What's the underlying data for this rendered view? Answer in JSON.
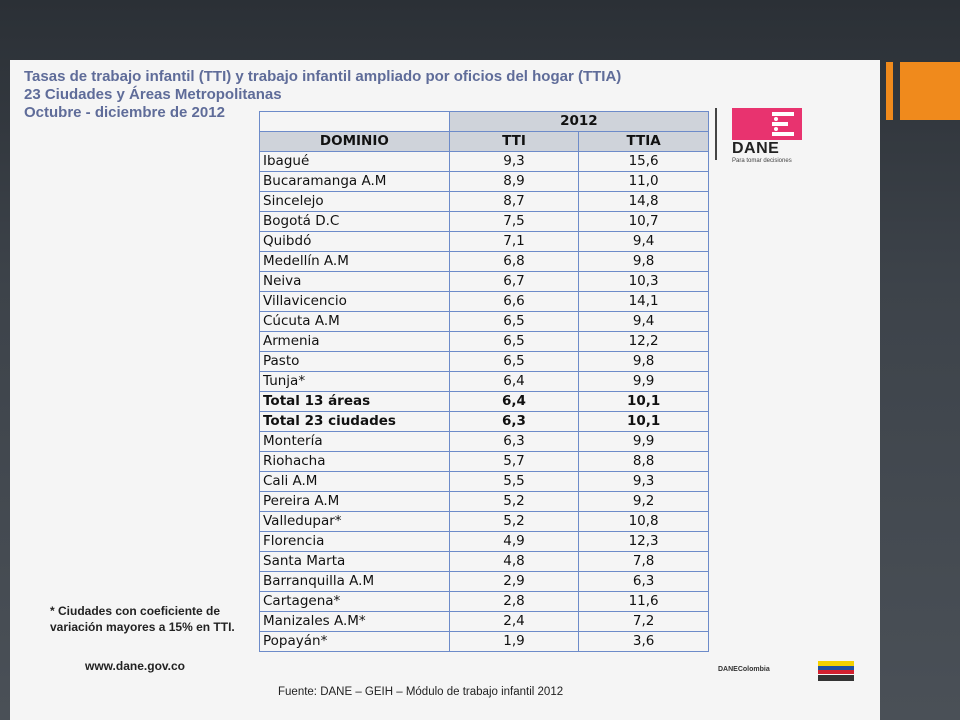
{
  "title_lines": [
    "Tasas de trabajo infantil (TTI) y trabajo infantil ampliado por oficios del hogar (TTIA)",
    "23 Ciudades y Áreas Metropolitanas",
    "Octubre - diciembre de 2012"
  ],
  "table": {
    "year": "2012",
    "col_domain": "DOMINIO",
    "col_tti": "TTI",
    "col_ttia": "TTIA",
    "rows": [
      {
        "domain": "Ibagué",
        "tti": "9,3",
        "ttia": "15,6",
        "bold": false
      },
      {
        "domain": "Bucaramanga A.M",
        "tti": "8,9",
        "ttia": "11,0",
        "bold": false
      },
      {
        "domain": "Sincelejo",
        "tti": "8,7",
        "ttia": "14,8",
        "bold": false
      },
      {
        "domain": "Bogotá D.C",
        "tti": "7,5",
        "ttia": "10,7",
        "bold": false
      },
      {
        "domain": "Quibdó",
        "tti": "7,1",
        "ttia": "9,4",
        "bold": false
      },
      {
        "domain": "Medellín A.M",
        "tti": "6,8",
        "ttia": "9,8",
        "bold": false
      },
      {
        "domain": "Neiva",
        "tti": "6,7",
        "ttia": "10,3",
        "bold": false
      },
      {
        "domain": "Villavicencio",
        "tti": "6,6",
        "ttia": "14,1",
        "bold": false
      },
      {
        "domain": "Cúcuta A.M",
        "tti": "6,5",
        "ttia": "9,4",
        "bold": false
      },
      {
        "domain": "Armenia",
        "tti": "6,5",
        "ttia": "12,2",
        "bold": false
      },
      {
        "domain": "Pasto",
        "tti": "6,5",
        "ttia": "9,8",
        "bold": false
      },
      {
        "domain": "Tunja*",
        "tti": "6,4",
        "ttia": "9,9",
        "bold": false
      },
      {
        "domain": "Total 13 áreas",
        "tti": "6,4",
        "ttia": "10,1",
        "bold": true
      },
      {
        "domain": "Total 23 ciudades",
        "tti": "6,3",
        "ttia": "10,1",
        "bold": true
      },
      {
        "domain": "Montería",
        "tti": "6,3",
        "ttia": "9,9",
        "bold": false
      },
      {
        "domain": "Riohacha",
        "tti": "5,7",
        "ttia": "8,8",
        "bold": false
      },
      {
        "domain": "Cali A.M",
        "tti": "5,5",
        "ttia": "9,3",
        "bold": false
      },
      {
        "domain": "Pereira A.M",
        "tti": "5,2",
        "ttia": "9,2",
        "bold": false
      },
      {
        "domain": "Valledupar*",
        "tti": "5,2",
        "ttia": "10,8",
        "bold": false
      },
      {
        "domain": "Florencia",
        "tti": "4,9",
        "ttia": "12,3",
        "bold": false
      },
      {
        "domain": "Santa Marta",
        "tti": "4,8",
        "ttia": "7,8",
        "bold": false
      },
      {
        "domain": "Barranquilla A.M",
        "tti": "2,9",
        "ttia": "6,3",
        "bold": false
      },
      {
        "domain": "Cartagena*",
        "tti": "2,8",
        "ttia": "11,6",
        "bold": false
      },
      {
        "domain": "Manizales A.M*",
        "tti": "2,4",
        "ttia": "7,2",
        "bold": false
      },
      {
        "domain": "Popayán*",
        "tti": "1,9",
        "ttia": "3,6",
        "bold": false
      }
    ]
  },
  "logo": {
    "name": "DANE",
    "tagline": "Para tomar decisiones",
    "icon": "dane-logo-icon",
    "color": "#e8336f"
  },
  "footnote": "* Ciudades con coeficiente de variación mayores a 15% en TTI.",
  "website": "www.dane.gov.co",
  "source": "Fuente: DANE – GEIH – Módulo de trabajo infantil 2012",
  "dane_colombia": "DANEColombia",
  "prosperidad_logo": "prosperidad-para-todos-logo",
  "colors": {
    "accent": "#f08a1c",
    "title": "#5f6c99",
    "table_border": "#6d8bc9",
    "header_bg": "#cfd3da"
  }
}
